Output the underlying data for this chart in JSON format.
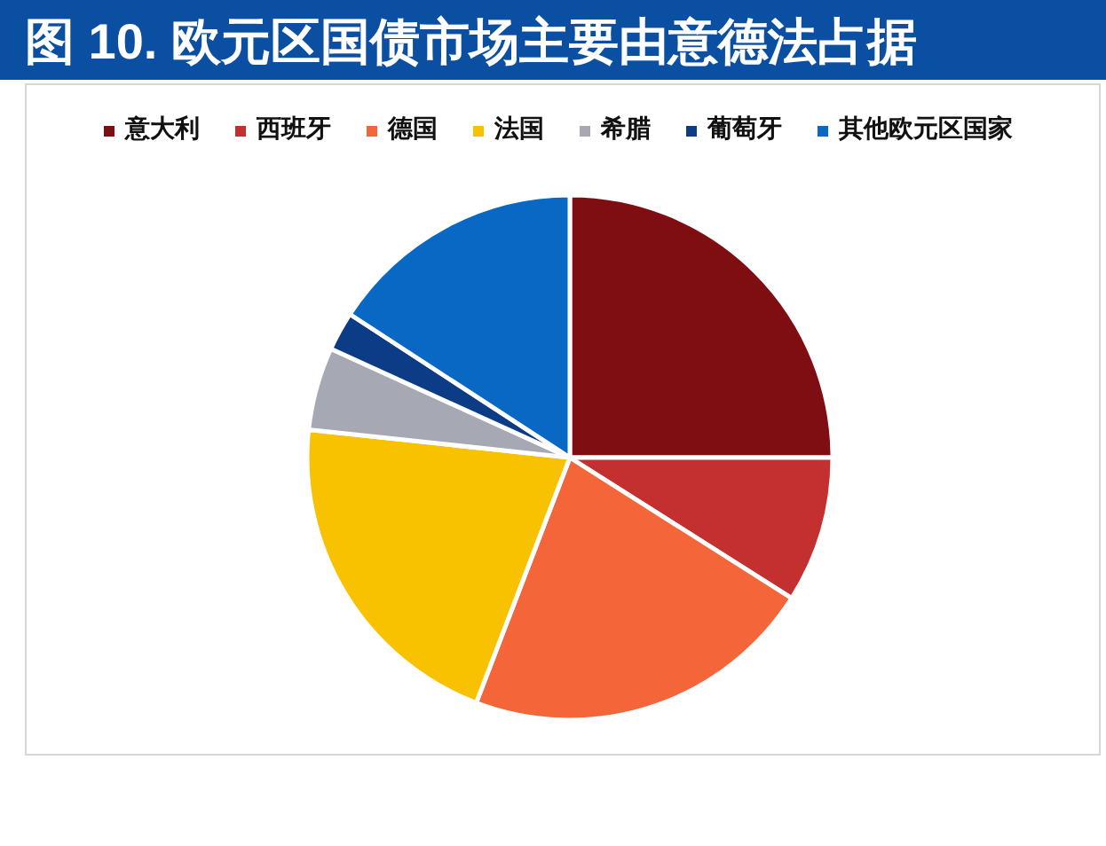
{
  "chart_data": {
    "type": "pie",
    "title": "图 10. 欧元区国债市场主要由意德法占据",
    "categories": [
      "意大利",
      "西班牙",
      "德国",
      "法国",
      "希腊",
      "葡萄牙",
      "其他欧元区国家"
    ],
    "values": [
      25.0,
      9.0,
      21.8,
      20.9,
      5.1,
      2.4,
      15.8
    ],
    "colors": [
      "#7f0e12",
      "#c3302f",
      "#f4663a",
      "#f9c200",
      "#a6a9b4",
      "#0c3c85",
      "#0868c4"
    ],
    "legend": "top"
  }
}
